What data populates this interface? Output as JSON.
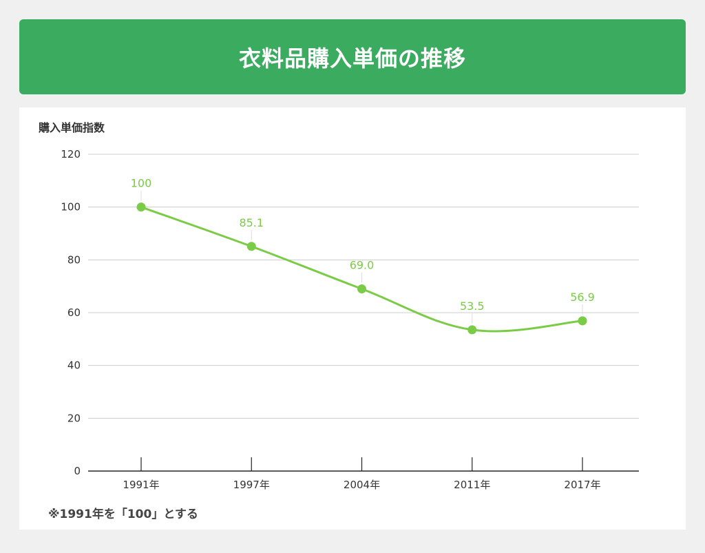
{
  "title": "衣料品購入単価の推移",
  "footnote": "※1991年を「100」とする",
  "colors": {
    "banner": "#3bab60",
    "series": "#7acb45",
    "grid": "#cccccc"
  },
  "chart_data": {
    "type": "line",
    "title": "衣料品購入単価の推移",
    "xlabel": "",
    "ylabel": "購入単価指数",
    "categories": [
      "1991年",
      "1997年",
      "2004年",
      "2011年",
      "2017年"
    ],
    "values": [
      100,
      85.1,
      69.0,
      53.5,
      56.9
    ],
    "value_labels": [
      "100",
      "85.1",
      "69.0",
      "53.5",
      "56.9"
    ],
    "ylim": [
      0,
      120
    ],
    "yticks": [
      0,
      20,
      40,
      60,
      80,
      100,
      120
    ],
    "ytick_labels": [
      "0",
      "20",
      "40",
      "60",
      "80",
      "100",
      "120"
    ],
    "grid": true,
    "legend": "none",
    "smooth": true
  }
}
